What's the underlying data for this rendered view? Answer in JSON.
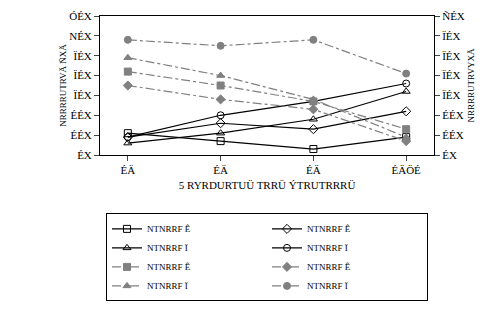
{
  "chart_data": {
    "type": "line",
    "x_label": "5 RYRDURTUÜ TRRÜ ÝTRUTRRRÜ",
    "y_label": "NRRRRUTRVÄ ÑXÄ",
    "y2_label": "NRRRRUTRVYXÄ",
    "categories": [
      "ÉÄ",
      "ÉÄ",
      "ÉÄ",
      "ÉÄÖÉ"
    ],
    "ylim": [
      0,
      7
    ],
    "yticks": [
      {
        "value": 0,
        "label": "ÉX"
      },
      {
        "value": 1,
        "label": "ÉÉX"
      },
      {
        "value": 2,
        "label": "ÉÉX"
      },
      {
        "value": 3,
        "label": "ÏÉX"
      },
      {
        "value": 4,
        "label": "ÏÉX"
      },
      {
        "value": 5,
        "label": "ÏÉX"
      },
      {
        "value": 6,
        "label": "NÉX"
      },
      {
        "value": 7,
        "label": "ÓÉX"
      }
    ],
    "y2lim": [
      0,
      7
    ],
    "y2ticks": [
      {
        "value": 0,
        "label": "ÉX"
      },
      {
        "value": 1,
        "label": "ÉÉX"
      },
      {
        "value": 2,
        "label": "ÉÉX"
      },
      {
        "value": 3,
        "label": "ÏÉX"
      },
      {
        "value": 4,
        "label": "ÏÉX"
      },
      {
        "value": 5,
        "label": "ÏÉX"
      },
      {
        "value": 6,
        "label": "ÏÉX"
      },
      {
        "value": 7,
        "label": "ÑÉX"
      }
    ],
    "grid": false,
    "legend": "bottom",
    "series": [
      {
        "name": "NTNRRF Ê",
        "color": "#000000",
        "marker": "square-open",
        "line_style": "solid",
        "axis": "y",
        "values": [
          1.1,
          0.7,
          0.3,
          0.9
        ]
      },
      {
        "name": "NTNRRF Ê",
        "color": "#000000",
        "marker": "diamond-open",
        "line_style": "solid",
        "axis": "y",
        "values": [
          0.9,
          1.6,
          1.3,
          2.2
        ]
      },
      {
        "name": "NTNRRF Ï",
        "color": "#000000",
        "marker": "triangle-up-open",
        "line_style": "solid",
        "axis": "y",
        "values": [
          0.6,
          1.1,
          1.8,
          3.2
        ]
      },
      {
        "name": "NTNRRF Ï",
        "color": "#000000",
        "marker": "circle-open",
        "line_style": "solid",
        "axis": "y",
        "values": [
          0.9,
          2.0,
          2.7,
          3.6
        ]
      },
      {
        "name": "NTNRRF Ê",
        "color": "#808080",
        "marker": "square",
        "line_style": "dashdot",
        "axis": "y2",
        "values": [
          4.2,
          3.5,
          2.7,
          1.3
        ]
      },
      {
        "name": "NTNRRF Ê",
        "color": "#808080",
        "marker": "diamond",
        "line_style": "dashdot",
        "axis": "y2",
        "values": [
          3.5,
          2.8,
          2.3,
          0.7
        ]
      },
      {
        "name": "NTNRRF Ï",
        "color": "#808080",
        "marker": "triangle-up",
        "line_style": "dashdot",
        "axis": "y2",
        "values": [
          4.9,
          4.0,
          2.8,
          0.9
        ]
      },
      {
        "name": "NTNRRF Ï",
        "color": "#808080",
        "marker": "circle",
        "line_style": "dashdot",
        "axis": "y2",
        "values": [
          5.8,
          5.5,
          5.8,
          4.1
        ]
      }
    ]
  }
}
